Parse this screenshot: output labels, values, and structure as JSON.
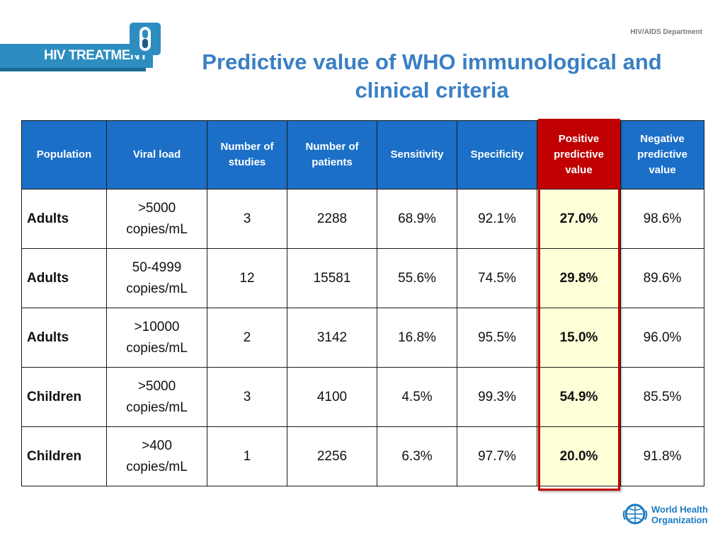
{
  "header": {
    "banner_label": "HIV TREATMENT",
    "department": "HIV/AIDS Department",
    "title": "Predictive value of WHO immunological and clinical criteria"
  },
  "table": {
    "columns": [
      "Population",
      "Viral load",
      "Number of studies",
      "Number of patients",
      "Sensitivity",
      "Specificity",
      "Positive predictive value",
      "Negative predictive value"
    ],
    "rows": [
      [
        "Adults",
        ">5000 copies/mL",
        "3",
        "2288",
        "68.9%",
        "92.1%",
        "27.0%",
        "98.6%"
      ],
      [
        "Adults",
        "50-4999 copies/mL",
        "12",
        "15581",
        "55.6%",
        "74.5%",
        "29.8%",
        "89.6%"
      ],
      [
        "Adults",
        ">10000 copies/mL",
        "2",
        "3142",
        "16.8%",
        "95.5%",
        "15.0%",
        "96.0%"
      ],
      [
        "Children",
        ">5000 copies/mL",
        "3",
        "4100",
        "4.5%",
        "99.3%",
        "54.9%",
        "85.5%"
      ],
      [
        "Children",
        ">400 copies/mL",
        "1",
        "2256",
        "6.3%",
        "97.7%",
        "20.0%",
        "91.8%"
      ]
    ],
    "highlight_column": "Positive predictive value"
  },
  "footer": {
    "logo_line1": "World Health",
    "logo_line2": "Organization"
  },
  "colors": {
    "header_blue": "#1b6fc7",
    "highlight_red": "#c00000",
    "highlight_fill": "#ffffd8",
    "title_blue": "#3a7fc4"
  },
  "icons": [
    "pill-capsule-icon",
    "who-emblem-icon"
  ]
}
